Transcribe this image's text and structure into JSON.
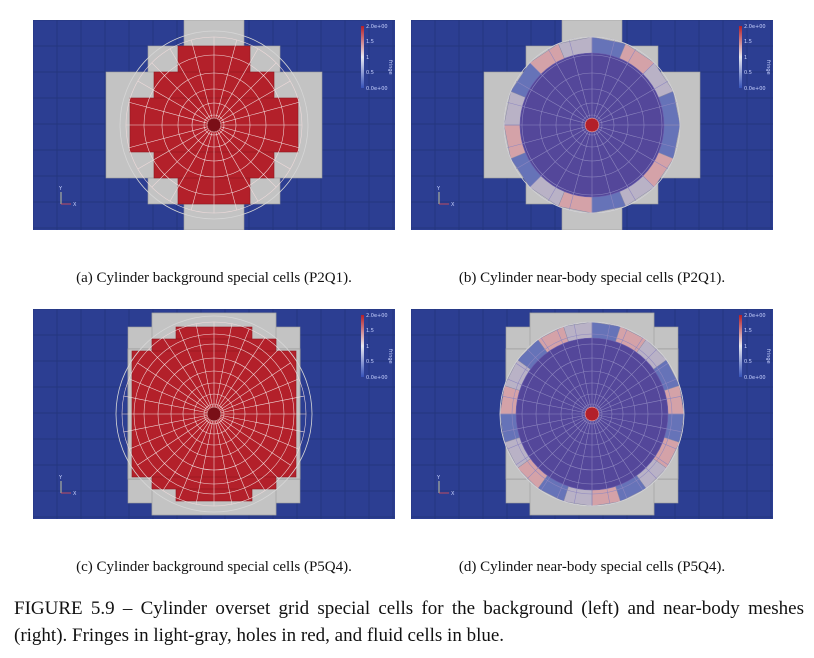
{
  "panels": [
    {
      "label": "(a) Cylinder background special cells (P2Q1).",
      "kind": "background",
      "order": "P2Q1"
    },
    {
      "label": "(b) Cylinder near-body special cells (P2Q1).",
      "kind": "nearbody",
      "order": "P2Q1"
    },
    {
      "label": "(c) Cylinder background special cells (P5Q4).",
      "kind": "background",
      "order": "P5Q4"
    },
    {
      "label": "(d) Cylinder near-body special cells (P5Q4).",
      "kind": "nearbody",
      "order": "P5Q4"
    }
  ],
  "colorbar": {
    "title": "fringe",
    "ticks": [
      "2.0e+00",
      "1.5",
      "1",
      "0.5",
      "0.0e+00"
    ]
  },
  "axes_triad": {
    "y": "Y",
    "x": "X"
  },
  "figure_caption": "FIGURE 5.9 – Cylinder overset grid special cells for the background (left) and near-body meshes (right). Fringes in light-gray, holes in red, and fluid cells in blue.",
  "colors": {
    "fluid": "#2c3e92",
    "fringe": "#c3c3c3",
    "hole": "#b3202a",
    "nearbody_fluid": "#54479a",
    "nearbody_fringe_pink": "#d4a2a8",
    "nearbody_fringe_blue": "#6673b8"
  }
}
